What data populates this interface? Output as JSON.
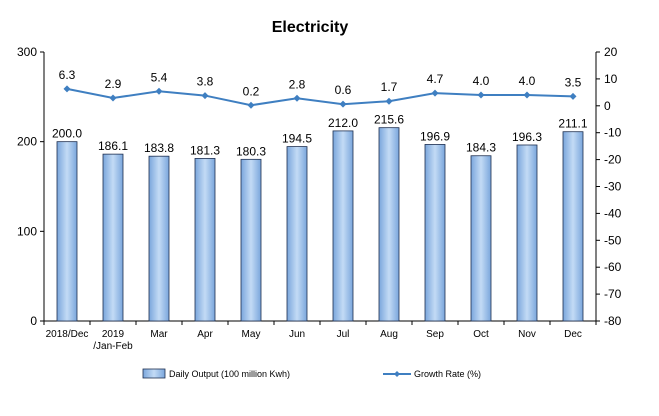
{
  "chart_data": {
    "type": "bar",
    "title": "Electricity",
    "categories": [
      [
        "2018/Dec"
      ],
      [
        "2019",
        "/Jan-Feb"
      ],
      [
        "Mar"
      ],
      [
        "Apr"
      ],
      [
        "May"
      ],
      [
        "Jun"
      ],
      [
        "Jul"
      ],
      [
        "Aug"
      ],
      [
        "Sep"
      ],
      [
        "Oct"
      ],
      [
        "Nov"
      ],
      [
        "Dec"
      ]
    ],
    "series": [
      {
        "name": "Daily Output (100 million Kwh)",
        "type": "bar",
        "axis": "left",
        "values": [
          200.0,
          186.1,
          183.8,
          181.3,
          180.3,
          194.5,
          212.0,
          215.6,
          196.9,
          184.3,
          196.3,
          211.1
        ],
        "labels": [
          "200.0",
          "186.1",
          "183.8",
          "181.3",
          "180.3",
          "194.5",
          "212.0",
          "215.6",
          "196.9",
          "184.3",
          "196.3",
          "211.1"
        ]
      },
      {
        "name": "Growth Rate (%)",
        "type": "line",
        "axis": "right",
        "values": [
          6.3,
          2.9,
          5.4,
          3.8,
          0.2,
          2.8,
          0.6,
          1.7,
          4.7,
          4.0,
          4.0,
          3.5
        ],
        "labels": [
          "6.3",
          "2.9",
          "5.4",
          "3.8",
          "0.2",
          "2.8",
          "0.6",
          "1.7",
          "4.7",
          "4.0",
          "4.0",
          "3.5"
        ]
      }
    ],
    "y_left": {
      "min": 0,
      "max": 300,
      "ticks": [
        "0",
        "100",
        "200",
        "300"
      ]
    },
    "y_right": {
      "min": -80,
      "max": 20,
      "ticks": [
        "-80",
        "-70",
        "-60",
        "-50",
        "-40",
        "-30",
        "-20",
        "-10",
        "0",
        "10",
        "20"
      ]
    },
    "legend_position": "bottom",
    "grid": false,
    "colors": {
      "bar_fill": "#9ec0e8",
      "bar_stroke": "#1f2f4f",
      "line": "#3f7fc1",
      "marker": "#3f7fc1",
      "axis": "#000000"
    }
  }
}
